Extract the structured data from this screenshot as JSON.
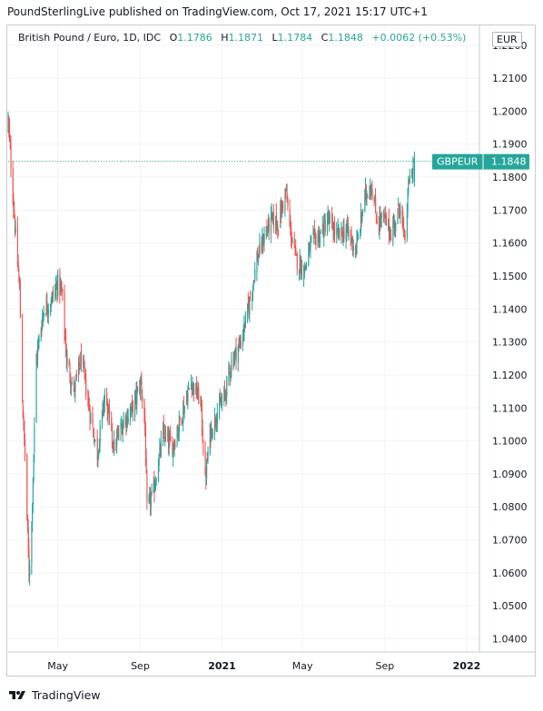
{
  "header": "PoundSterlingLive published on TradingView.com, Oct 17, 2021 15:17 UTC+1",
  "legend": {
    "title": "British Pound / Euro, 1D, IDC",
    "open_key": "O",
    "open": "1.1786",
    "high_key": "H",
    "high": "1.1871",
    "low_key": "L",
    "low": "1.1784",
    "close_key": "C",
    "close": "1.1848",
    "change": "+0.0062 (+0.53%)"
  },
  "currency": "EUR",
  "price_tag": {
    "symbol": "GBPEUR",
    "value": "1.1848",
    "color": "#26a69a"
  },
  "footer": {
    "brand": "TradingView",
    "logo_icon": "tradingview-logo-icon"
  },
  "colors": {
    "up": "#26a69a",
    "down": "#ef5350",
    "grid": "#f0f3fa",
    "text": "#131722"
  },
  "chart_data": {
    "type": "candlestick",
    "symbol": "GBPEUR",
    "interval": "1D",
    "ylim": [
      1.036,
      1.226
    ],
    "xlim": [
      "2020-02-17",
      "2022-01-20"
    ],
    "y_ticks": [
      "1.0400",
      "1.0500",
      "1.0600",
      "1.0700",
      "1.0800",
      "1.0900",
      "1.1000",
      "1.1100",
      "1.1200",
      "1.1300",
      "1.1400",
      "1.1500",
      "1.1600",
      "1.1700",
      "1.1800",
      "1.1900",
      "1.2000",
      "1.2100",
      "1.2200"
    ],
    "x_ticks": [
      {
        "label": "May",
        "date": "2020-05-01",
        "bold": false
      },
      {
        "label": "Sep",
        "date": "2020-09-01",
        "bold": false
      },
      {
        "label": "2021",
        "date": "2021-01-01",
        "bold": true
      },
      {
        "label": "May",
        "date": "2021-05-01",
        "bold": false
      },
      {
        "label": "Sep",
        "date": "2021-09-01",
        "bold": false
      },
      {
        "label": "2022",
        "date": "2022-01-01",
        "bold": true
      }
    ],
    "last_close": 1.1848,
    "grid": true,
    "close_path": [
      [
        "2020-02-17",
        1.197
      ],
      [
        "2020-02-28",
        1.162
      ],
      [
        "2020-03-05",
        1.146
      ],
      [
        "2020-03-09",
        1.113
      ],
      [
        "2020-03-13",
        1.095
      ],
      [
        "2020-03-19",
        1.06
      ],
      [
        "2020-03-23",
        1.075
      ],
      [
        "2020-03-30",
        1.125
      ],
      [
        "2020-04-10",
        1.14
      ],
      [
        "2020-04-20",
        1.142
      ],
      [
        "2020-05-01",
        1.148
      ],
      [
        "2020-05-07",
        1.145
      ],
      [
        "2020-05-14",
        1.125
      ],
      [
        "2020-05-25",
        1.115
      ],
      [
        "2020-06-05",
        1.125
      ],
      [
        "2020-06-15",
        1.112
      ],
      [
        "2020-06-29",
        1.096
      ],
      [
        "2020-07-10",
        1.114
      ],
      [
        "2020-07-24",
        1.098
      ],
      [
        "2020-08-07",
        1.106
      ],
      [
        "2020-08-21",
        1.11
      ],
      [
        "2020-09-02",
        1.118
      ],
      [
        "2020-09-08",
        1.104
      ],
      [
        "2020-09-11",
        1.079
      ],
      [
        "2020-09-21",
        1.085
      ],
      [
        "2020-10-05",
        1.102
      ],
      [
        "2020-10-19",
        1.098
      ],
      [
        "2020-11-02",
        1.108
      ],
      [
        "2020-11-16",
        1.118
      ],
      [
        "2020-11-30",
        1.112
      ],
      [
        "2020-12-07",
        1.088
      ],
      [
        "2020-12-14",
        1.102
      ],
      [
        "2020-12-23",
        1.108
      ],
      [
        "2021-01-04",
        1.113
      ],
      [
        "2021-01-15",
        1.124
      ],
      [
        "2021-01-29",
        1.13
      ],
      [
        "2021-02-10",
        1.141
      ],
      [
        "2021-02-22",
        1.155
      ],
      [
        "2021-03-05",
        1.162
      ],
      [
        "2021-03-15",
        1.167
      ],
      [
        "2021-03-26",
        1.166
      ],
      [
        "2021-04-06",
        1.176
      ],
      [
        "2021-04-12",
        1.165
      ],
      [
        "2021-04-21",
        1.155
      ],
      [
        "2021-05-04",
        1.152
      ],
      [
        "2021-05-14",
        1.16
      ],
      [
        "2021-05-28",
        1.163
      ],
      [
        "2021-06-08",
        1.167
      ],
      [
        "2021-06-22",
        1.162
      ],
      [
        "2021-07-06",
        1.164
      ],
      [
        "2021-07-20",
        1.158
      ],
      [
        "2021-08-02",
        1.174
      ],
      [
        "2021-08-11",
        1.178
      ],
      [
        "2021-08-20",
        1.167
      ],
      [
        "2021-09-01",
        1.167
      ],
      [
        "2021-09-10",
        1.163
      ],
      [
        "2021-09-17",
        1.167
      ],
      [
        "2021-09-24",
        1.172
      ],
      [
        "2021-09-30",
        1.16
      ],
      [
        "2021-10-07",
        1.179
      ],
      [
        "2021-10-15",
        1.1848
      ]
    ]
  }
}
